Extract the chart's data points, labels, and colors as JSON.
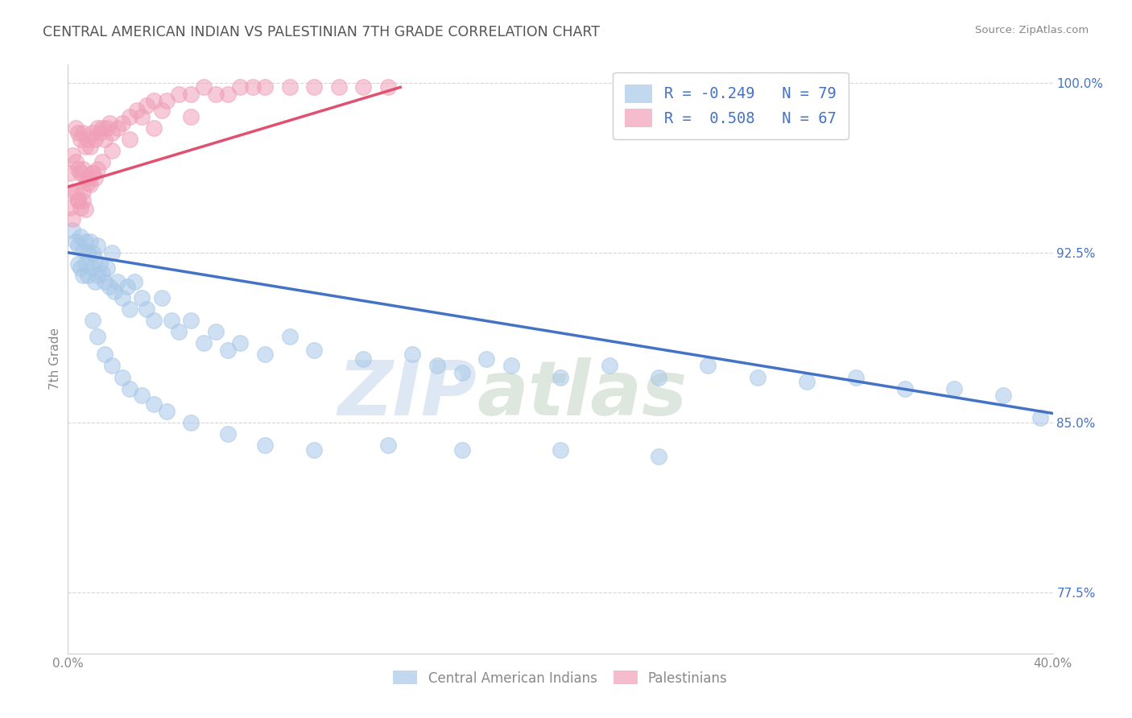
{
  "title": "CENTRAL AMERICAN INDIAN VS PALESTINIAN 7TH GRADE CORRELATION CHART",
  "source": "Source: ZipAtlas.com",
  "ylabel": "7th Grade",
  "watermark_zip": "ZIP",
  "watermark_atlas": "atlas",
  "legend_blue_r": "R = -0.249",
  "legend_blue_n": "N = 79",
  "legend_pink_r": "R =  0.508",
  "legend_pink_n": "N = 67",
  "legend_blue_label": "Central American Indians",
  "legend_pink_label": "Palestinians",
  "blue_color": "#a8c8e8",
  "pink_color": "#f0a0b8",
  "blue_line_color": "#4472c4",
  "pink_line_color": "#e05070",
  "xmin": 0.0,
  "xmax": 0.4,
  "ymin": 0.748,
  "ymax": 1.008,
  "blue_x": [
    0.002,
    0.003,
    0.004,
    0.004,
    0.005,
    0.005,
    0.006,
    0.006,
    0.007,
    0.007,
    0.008,
    0.008,
    0.009,
    0.01,
    0.01,
    0.011,
    0.011,
    0.012,
    0.012,
    0.013,
    0.014,
    0.015,
    0.016,
    0.017,
    0.018,
    0.019,
    0.02,
    0.022,
    0.024,
    0.025,
    0.027,
    0.03,
    0.032,
    0.035,
    0.038,
    0.042,
    0.045,
    0.05,
    0.055,
    0.06,
    0.065,
    0.07,
    0.08,
    0.09,
    0.1,
    0.12,
    0.14,
    0.15,
    0.16,
    0.17,
    0.18,
    0.2,
    0.22,
    0.24,
    0.26,
    0.28,
    0.3,
    0.32,
    0.34,
    0.36,
    0.38,
    0.395,
    0.01,
    0.012,
    0.015,
    0.018,
    0.022,
    0.025,
    0.03,
    0.035,
    0.04,
    0.05,
    0.065,
    0.08,
    0.1,
    0.13,
    0.16,
    0.2,
    0.24
  ],
  "blue_y": [
    0.935,
    0.93,
    0.928,
    0.92,
    0.932,
    0.918,
    0.926,
    0.915,
    0.93,
    0.92,
    0.925,
    0.915,
    0.93,
    0.925,
    0.918,
    0.922,
    0.912,
    0.928,
    0.915,
    0.92,
    0.916,
    0.912,
    0.918,
    0.91,
    0.925,
    0.908,
    0.912,
    0.905,
    0.91,
    0.9,
    0.912,
    0.905,
    0.9,
    0.895,
    0.905,
    0.895,
    0.89,
    0.895,
    0.885,
    0.89,
    0.882,
    0.885,
    0.88,
    0.888,
    0.882,
    0.878,
    0.88,
    0.875,
    0.872,
    0.878,
    0.875,
    0.87,
    0.875,
    0.87,
    0.875,
    0.87,
    0.868,
    0.87,
    0.865,
    0.865,
    0.862,
    0.852,
    0.895,
    0.888,
    0.88,
    0.875,
    0.87,
    0.865,
    0.862,
    0.858,
    0.855,
    0.85,
    0.845,
    0.84,
    0.838,
    0.84,
    0.838,
    0.838,
    0.835
  ],
  "pink_x": [
    0.001,
    0.001,
    0.002,
    0.002,
    0.003,
    0.003,
    0.003,
    0.004,
    0.004,
    0.004,
    0.005,
    0.005,
    0.005,
    0.006,
    0.006,
    0.006,
    0.007,
    0.007,
    0.007,
    0.008,
    0.008,
    0.009,
    0.009,
    0.01,
    0.01,
    0.011,
    0.011,
    0.012,
    0.012,
    0.013,
    0.014,
    0.015,
    0.016,
    0.017,
    0.018,
    0.02,
    0.022,
    0.025,
    0.028,
    0.03,
    0.032,
    0.035,
    0.038,
    0.04,
    0.045,
    0.05,
    0.055,
    0.06,
    0.065,
    0.07,
    0.075,
    0.08,
    0.09,
    0.1,
    0.11,
    0.12,
    0.13,
    0.002,
    0.004,
    0.006,
    0.008,
    0.01,
    0.014,
    0.018,
    0.025,
    0.035,
    0.05
  ],
  "pink_y": [
    0.96,
    0.945,
    0.968,
    0.952,
    0.98,
    0.965,
    0.952,
    0.978,
    0.962,
    0.948,
    0.975,
    0.96,
    0.945,
    0.978,
    0.962,
    0.948,
    0.972,
    0.958,
    0.944,
    0.975,
    0.958,
    0.972,
    0.955,
    0.978,
    0.96,
    0.975,
    0.958,
    0.98,
    0.962,
    0.978,
    0.98,
    0.975,
    0.98,
    0.982,
    0.978,
    0.98,
    0.982,
    0.985,
    0.988,
    0.985,
    0.99,
    0.992,
    0.988,
    0.992,
    0.995,
    0.995,
    0.998,
    0.995,
    0.995,
    0.998,
    0.998,
    0.998,
    0.998,
    0.998,
    0.998,
    0.998,
    0.998,
    0.94,
    0.948,
    0.952,
    0.956,
    0.96,
    0.965,
    0.97,
    0.975,
    0.98,
    0.985
  ],
  "blue_trend_x": [
    0.0,
    0.4
  ],
  "blue_trend_y": [
    0.925,
    0.854
  ],
  "pink_trend_x": [
    0.0,
    0.135
  ],
  "pink_trend_y": [
    0.954,
    0.998
  ]
}
